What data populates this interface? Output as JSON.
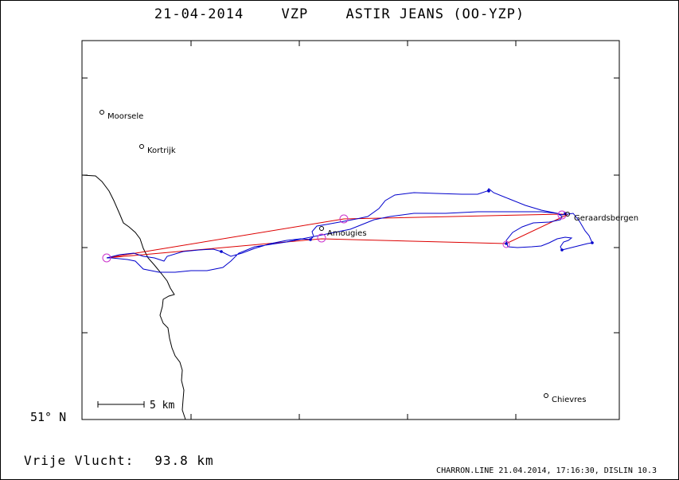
{
  "header": {
    "date": "21-04-2014",
    "club": "VZP",
    "glider": "ASTIR JEANS (OO-YZP)"
  },
  "map": {
    "lat_label": "51° N",
    "scale_label": "5 km",
    "places": [
      {
        "name": "Moorsele"
      },
      {
        "name": "Kortrijk"
      },
      {
        "name": "Amougies"
      },
      {
        "name": "Geraardsbergen"
      },
      {
        "name": "Chievres"
      }
    ],
    "colors": {
      "track": "#0000cc",
      "task": "#dd0000",
      "turnpoint": "#cc33cc",
      "border": "#000000"
    }
  },
  "summary": {
    "label": "Vrije Vlucht:",
    "distance": "93.8 km"
  },
  "footer": {
    "credit": "CHARRON.LINE 21.04.2014, 17:16:30, DISLIN 10.3"
  }
}
